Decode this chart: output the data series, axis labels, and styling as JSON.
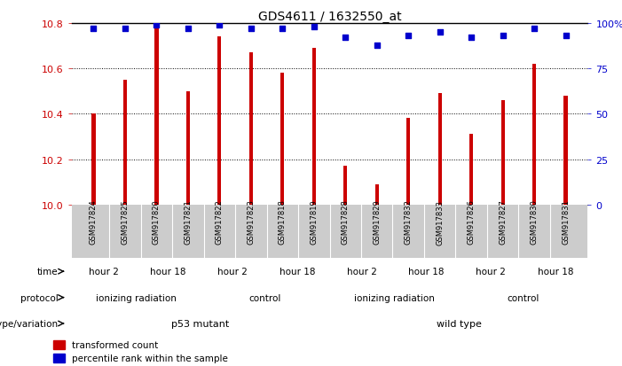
{
  "title": "GDS4611 / 1632550_at",
  "samples": [
    "GSM917824",
    "GSM917825",
    "GSM917820",
    "GSM917821",
    "GSM917822",
    "GSM917823",
    "GSM917818",
    "GSM917819",
    "GSM917828",
    "GSM917829",
    "GSM917832",
    "GSM917833",
    "GSM917826",
    "GSM917827",
    "GSM917830",
    "GSM917831"
  ],
  "bar_values": [
    10.4,
    10.55,
    10.8,
    10.5,
    10.74,
    10.67,
    10.58,
    10.69,
    10.17,
    10.09,
    10.38,
    10.49,
    10.31,
    10.46,
    10.62,
    10.48
  ],
  "percentile_values": [
    97,
    97,
    99,
    97,
    99,
    97,
    97,
    98,
    92,
    88,
    93,
    95,
    92,
    93,
    97,
    93
  ],
  "ylim_left": [
    10.0,
    10.8
  ],
  "ylim_right": [
    0,
    100
  ],
  "yticks_left": [
    10.0,
    10.2,
    10.4,
    10.6,
    10.8
  ],
  "yticks_right": [
    0,
    25,
    50,
    75,
    100
  ],
  "ytick_labels_right": [
    "0",
    "25",
    "50",
    "75",
    "100%"
  ],
  "bar_color": "#cc0000",
  "dot_color": "#0000cc",
  "background_color": "#ffffff",
  "plot_bg_color": "#ffffff",
  "xtick_bg_color": "#cccccc",
  "genotype_groups": [
    {
      "label": "p53 mutant",
      "start": 0,
      "end": 8,
      "color": "#99dd88"
    },
    {
      "label": "wild type",
      "start": 8,
      "end": 16,
      "color": "#77cc77"
    }
  ],
  "protocol_groups": [
    {
      "label": "ionizing radiation",
      "start": 0,
      "end": 4,
      "color": "#aaaaee"
    },
    {
      "label": "control",
      "start": 4,
      "end": 8,
      "color": "#9977cc"
    },
    {
      "label": "ionizing radiation",
      "start": 8,
      "end": 12,
      "color": "#aaaaee"
    },
    {
      "label": "control",
      "start": 12,
      "end": 16,
      "color": "#9977cc"
    }
  ],
  "time_groups": [
    {
      "label": "hour 2",
      "start": 0,
      "end": 2,
      "color": "#ffcccc"
    },
    {
      "label": "hour 18",
      "start": 2,
      "end": 4,
      "color": "#dd8888"
    },
    {
      "label": "hour 2",
      "start": 4,
      "end": 6,
      "color": "#ffcccc"
    },
    {
      "label": "hour 18",
      "start": 6,
      "end": 8,
      "color": "#dd8888"
    },
    {
      "label": "hour 2",
      "start": 8,
      "end": 10,
      "color": "#ffcccc"
    },
    {
      "label": "hour 18",
      "start": 10,
      "end": 12,
      "color": "#dd8888"
    },
    {
      "label": "hour 2",
      "start": 12,
      "end": 14,
      "color": "#ffcccc"
    },
    {
      "label": "hour 18",
      "start": 14,
      "end": 16,
      "color": "#dd8888"
    }
  ],
  "legend_items": [
    {
      "color": "#cc0000",
      "label": "transformed count"
    },
    {
      "color": "#0000cc",
      "label": "percentile rank within the sample"
    }
  ],
  "n_samples": 16
}
